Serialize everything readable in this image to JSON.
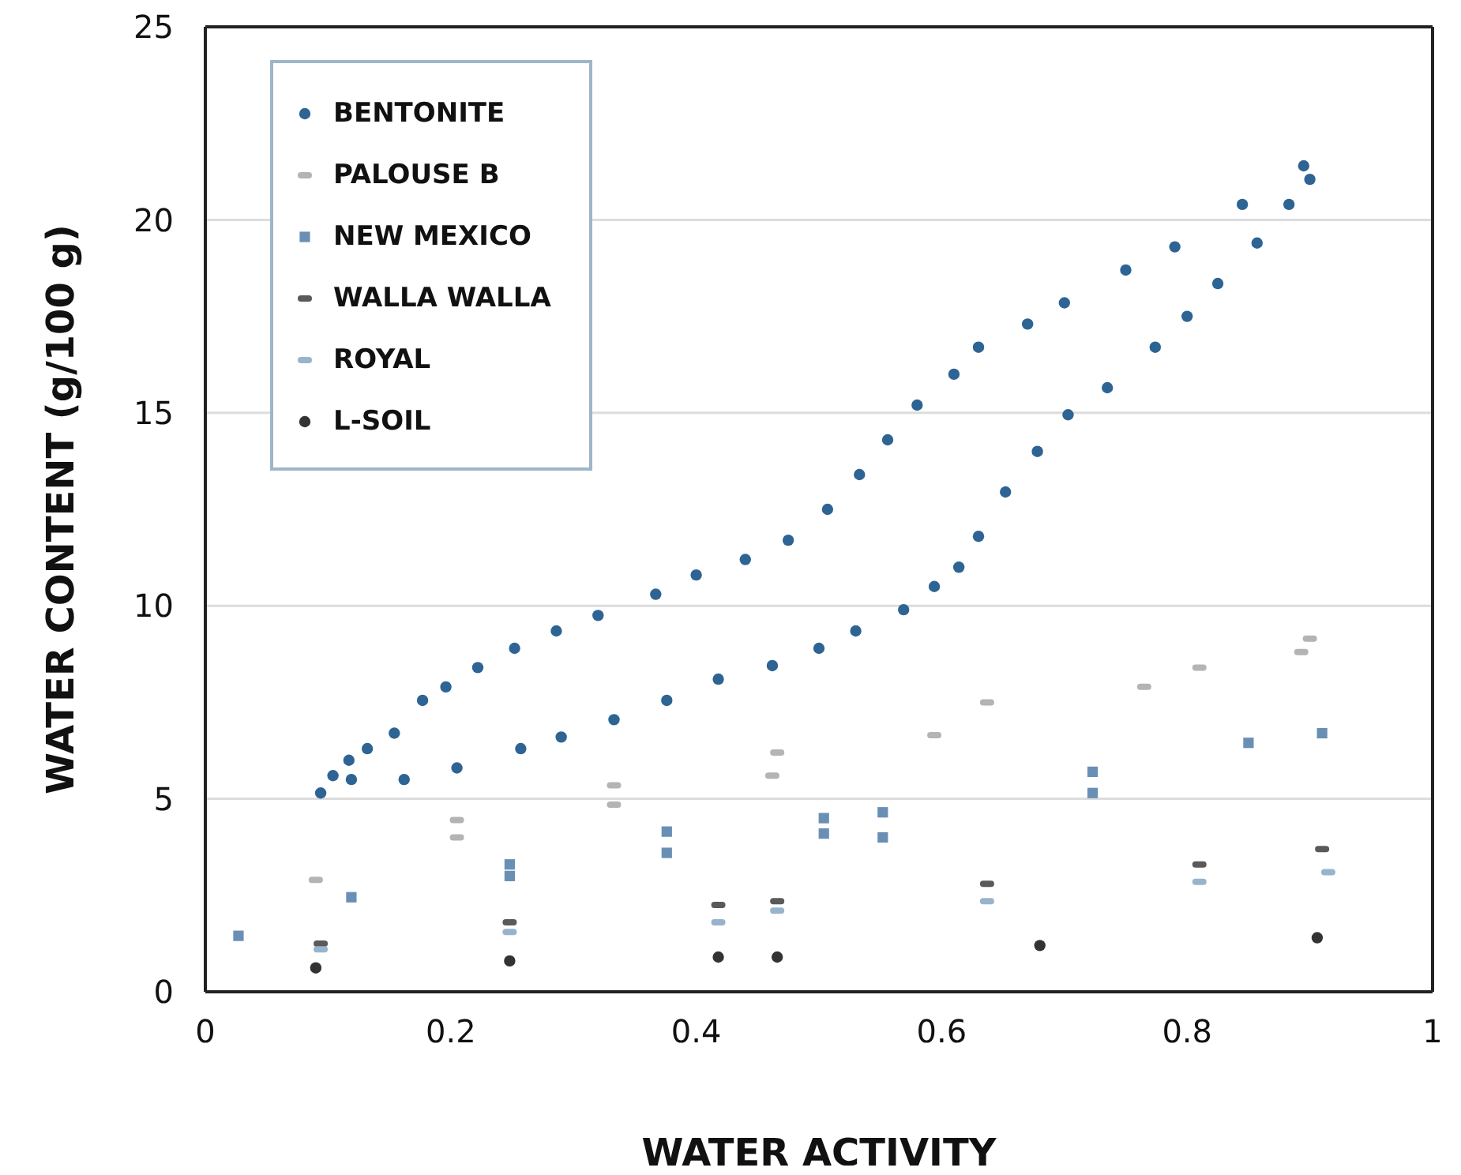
{
  "chart_data": {
    "type": "scatter",
    "xlabel": "WATER ACTIVITY",
    "ylabel": "WATER CONTENT (g/100 g)",
    "xlim": [
      0,
      1
    ],
    "xticks": [
      0,
      0.2,
      0.4,
      0.6,
      0.8,
      1
    ],
    "ylim": [
      0,
      25
    ],
    "yticks": [
      0,
      5,
      10,
      15,
      20,
      25
    ],
    "grid": "y",
    "legend": "top left",
    "series": [
      {
        "name": "BENTONITE",
        "color": "#2e6494",
        "marker": "circle",
        "x": [
          0.094,
          0.119,
          0.162,
          0.205,
          0.257,
          0.29,
          0.333,
          0.376,
          0.418,
          0.462,
          0.5,
          0.53,
          0.569,
          0.594,
          0.614,
          0.63,
          0.652,
          0.678,
          0.703,
          0.735,
          0.774,
          0.8,
          0.825,
          0.857,
          0.883,
          0.9,
          0.895,
          0.845,
          0.79,
          0.75,
          0.7,
          0.67,
          0.63,
          0.61,
          0.58,
          0.556,
          0.533,
          0.507,
          0.475,
          0.44,
          0.4,
          0.367,
          0.32,
          0.286,
          0.252,
          0.222,
          0.196,
          0.177,
          0.154,
          0.132,
          0.117,
          0.104
        ],
        "values": [
          5.15,
          5.5,
          5.5,
          5.8,
          6.3,
          6.6,
          7.05,
          7.55,
          8.1,
          8.45,
          8.9,
          9.35,
          9.9,
          10.5,
          11.0,
          11.8,
          12.95,
          14.0,
          14.95,
          15.65,
          16.7,
          17.5,
          18.35,
          19.4,
          20.4,
          21.05,
          21.4,
          20.4,
          19.3,
          18.7,
          17.85,
          17.3,
          16.7,
          16.0,
          15.2,
          14.3,
          13.4,
          12.5,
          11.7,
          11.2,
          10.8,
          10.3,
          9.75,
          9.35,
          8.9,
          8.4,
          7.9,
          7.55,
          6.7,
          6.3,
          6.0,
          5.6
        ]
      },
      {
        "name": "PALOUSE B",
        "color": "#b4b4b4",
        "x": [
          0.09,
          0.205,
          0.333,
          0.462,
          0.594,
          0.765,
          0.893,
          0.9,
          0.81,
          0.637,
          0.466,
          0.333,
          0.205
        ],
        "values": [
          2.9,
          4.0,
          4.85,
          5.6,
          6.65,
          7.9,
          8.8,
          9.15,
          8.4,
          7.5,
          6.2,
          5.35,
          4.45
        ]
      },
      {
        "name": "NEW MEXICO",
        "color": "#6a8fb5",
        "marker": "square",
        "x": [
          0.027,
          0.119,
          0.248,
          0.376,
          0.504,
          0.552,
          0.723,
          0.85,
          0.91,
          0.723,
          0.552,
          0.504,
          0.376,
          0.248
        ],
        "values": [
          1.45,
          2.45,
          3.0,
          3.6,
          4.1,
          4.0,
          5.15,
          6.45,
          6.7,
          5.7,
          4.65,
          4.5,
          4.15,
          3.3
        ]
      },
      {
        "name": "WALLA WALLA",
        "color": "#5a5a5a",
        "x": [
          0.094,
          0.248,
          0.418,
          0.466,
          0.637,
          0.81,
          0.91
        ],
        "values": [
          1.25,
          1.8,
          2.25,
          2.35,
          2.8,
          3.3,
          3.7
        ]
      },
      {
        "name": "ROYAL",
        "color": "#98b4cc",
        "x": [
          0.094,
          0.248,
          0.418,
          0.466,
          0.637,
          0.81,
          0.915
        ],
        "values": [
          1.1,
          1.55,
          1.8,
          2.1,
          2.35,
          2.85,
          3.1
        ]
      },
      {
        "name": "L-SOIL",
        "color": "#333333",
        "marker": "circle",
        "x": [
          0.09,
          0.248,
          0.418,
          0.466,
          0.68,
          0.906
        ],
        "values": [
          0.62,
          0.8,
          0.9,
          0.9,
          1.2,
          1.4
        ]
      }
    ]
  }
}
